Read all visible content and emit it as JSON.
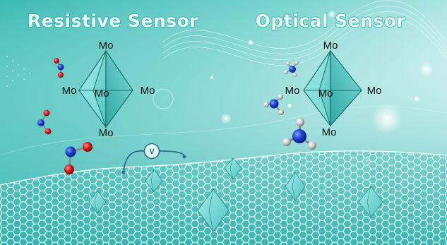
{
  "titles": {
    "left": "Resistive Sensor",
    "right": "Optical Sensor"
  },
  "cluster_left": {
    "top": "Mo",
    "left": "Mo",
    "center": "Mo",
    "right": "Mo",
    "bottom": "Mo"
  },
  "cluster_right": {
    "top": "Mo",
    "left": "Mo",
    "center": "Mo",
    "right": "Mo",
    "bottom": "Mo"
  },
  "voltmeter": {
    "label": "V"
  },
  "colors": {
    "background_light": "#e4f7f6",
    "background_teal": "#2fb3ae",
    "crystal_fill": "#6ed2cf",
    "crystal_edge": "#2a8e8c",
    "nitrogen": "#1537c9",
    "oxygen": "#d41b1b",
    "hydrogen": "#d9d9d9",
    "lattice": "#f2fffe",
    "wire": "#2f6d8c"
  },
  "molecules_left": [
    "NO2",
    "NO2",
    "NO2"
  ],
  "molecules_right": [
    "NH3",
    "NH3",
    "NH3"
  ]
}
